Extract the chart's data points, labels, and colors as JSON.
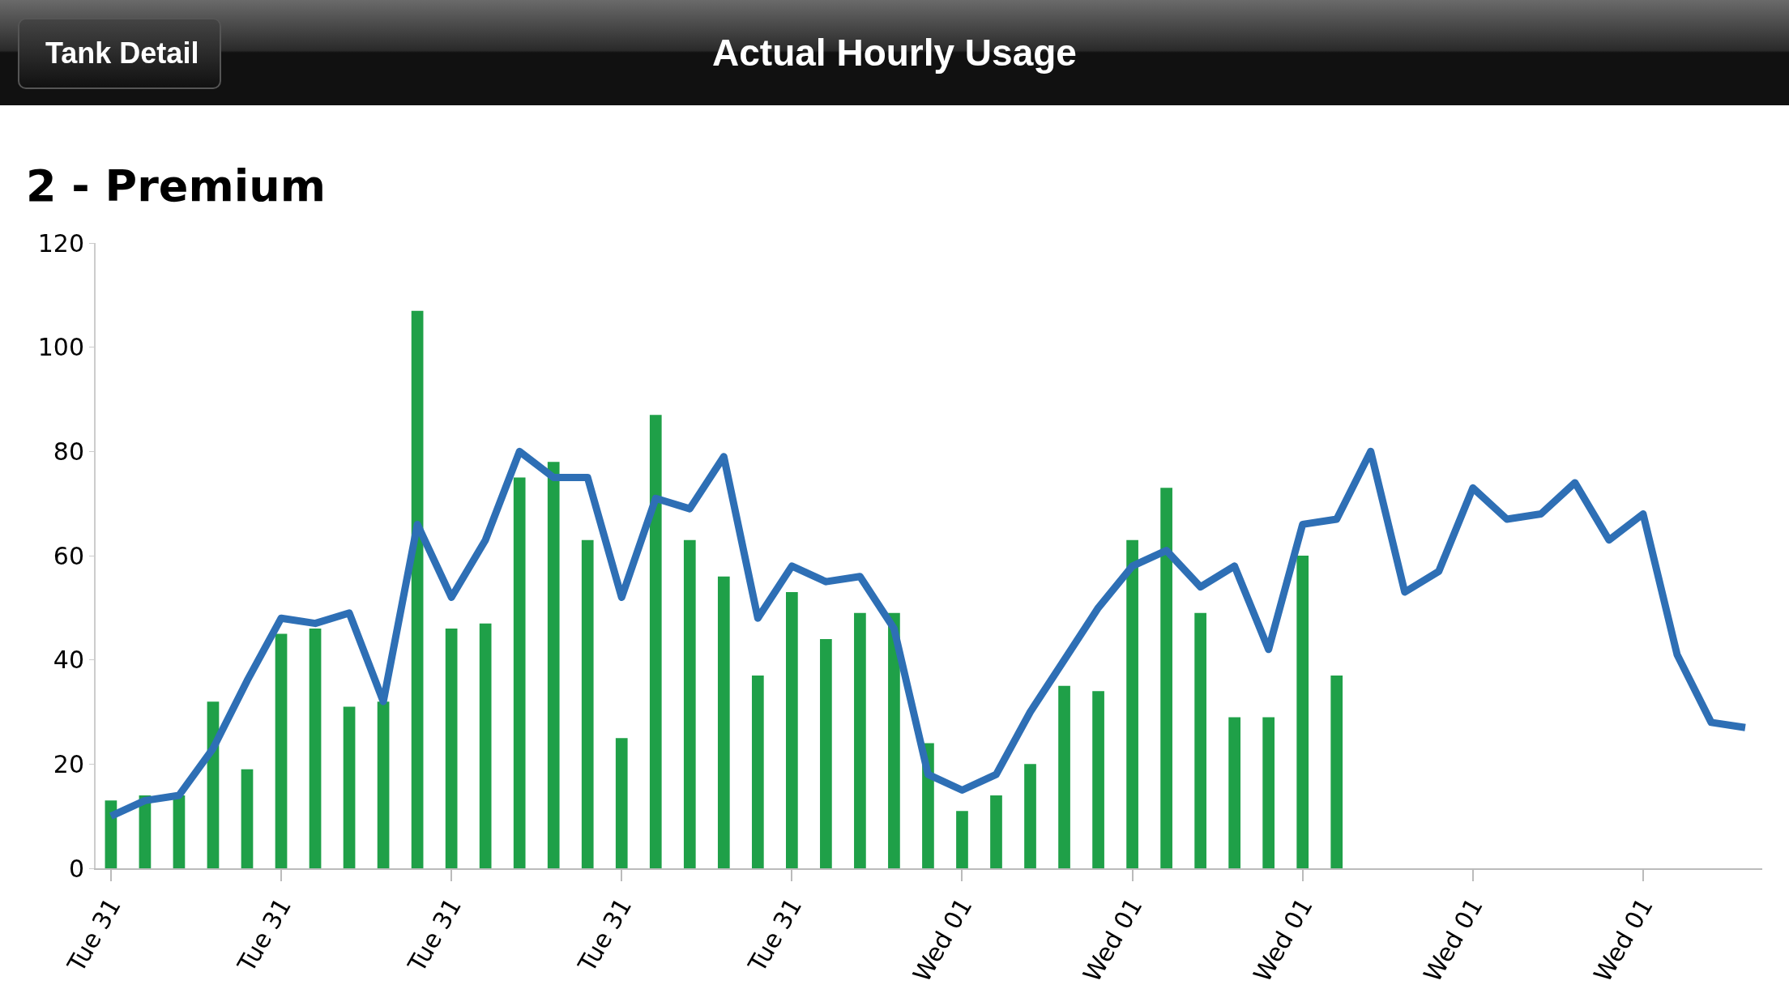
{
  "chart_data": {
    "type": "bar",
    "title": "Actual Hourly Usage",
    "subtitle": "2 - Premium",
    "annotations": [
      "Tank Detail"
    ],
    "categories": [
      "Tue 31",
      null,
      null,
      null,
      null,
      "Tue 31",
      null,
      null,
      null,
      null,
      "Tue 31",
      null,
      null,
      null,
      null,
      "Tue 31",
      null,
      null,
      null,
      null,
      "Tue 31",
      null,
      null,
      null,
      null,
      "Wed 01",
      null,
      null,
      null,
      null,
      "Wed 01",
      null,
      null,
      null,
      null,
      "Wed 01",
      null,
      null,
      null,
      null,
      "Wed 01",
      null,
      null,
      null,
      null,
      "Wed 01",
      null,
      null,
      null
    ],
    "series": [
      {
        "color": "#1fa048",
        "values": [
          13,
          14,
          14,
          32,
          19,
          45,
          46,
          31,
          32,
          107,
          46,
          47,
          75,
          78,
          63,
          25,
          87,
          63,
          56,
          37,
          53,
          44,
          49,
          49,
          24,
          11,
          14,
          20,
          35,
          34,
          63,
          73,
          49,
          29,
          29,
          60,
          37,
          null,
          null,
          null,
          null,
          null,
          null,
          null,
          null,
          null,
          null,
          null,
          null
        ]
      },
      {
        "type": "line",
        "color": "#2e6fb5",
        "values": [
          10,
          13,
          14,
          23,
          36,
          48,
          47,
          49,
          32,
          66,
          52,
          63,
          80,
          75,
          75,
          52,
          71,
          69,
          79,
          48,
          58,
          55,
          56,
          46,
          18,
          15,
          18,
          30,
          40,
          50,
          58,
          61,
          54,
          58,
          42,
          66,
          67,
          80,
          53,
          57,
          73,
          67,
          68,
          74,
          63,
          68,
          41,
          28,
          27
        ]
      }
    ],
    "ylim": [
      0,
      120
    ],
    "yticks": [
      0,
      20,
      40,
      60,
      80,
      100,
      120
    ],
    "grid": false
  }
}
